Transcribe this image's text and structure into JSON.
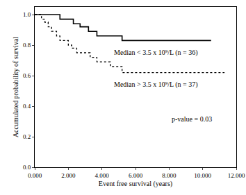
{
  "chart_data": {
    "type": "line",
    "x_label": "Event free survival (years)",
    "y_label": "Accumulated probability of survival",
    "annotations": [
      "p-value = 0.03"
    ],
    "xlim": [
      0,
      12
    ],
    "xticks": [
      {
        "value": 0,
        "label": "0.000"
      },
      {
        "value": 2,
        "label": "2.000"
      },
      {
        "value": 4,
        "label": "4.000"
      },
      {
        "value": 6,
        "label": "6.000"
      },
      {
        "value": 8,
        "label": "8.000"
      },
      {
        "value": 10,
        "label": "10.000"
      },
      {
        "value": 12,
        "label": "12.000"
      }
    ],
    "ylim": [
      0,
      1.05
    ],
    "yticks": [
      {
        "value": 0,
        "label": "0.0"
      },
      {
        "value": 0.2,
        "label": "0.2"
      },
      {
        "value": 0.4,
        "label": "0.4"
      },
      {
        "value": 0.6,
        "label": "0.6"
      },
      {
        "value": 0.8,
        "label": "0.8"
      },
      {
        "value": 1,
        "label": "1.0"
      }
    ],
    "grid": false,
    "series": [
      {
        "name": "Median < 3.5 x 10⁹/L (n = 36)",
        "color": "#000000",
        "line_style": "solid",
        "x": [
          0,
          1.5,
          2.3,
          2.7,
          3.2,
          3.7,
          5.2,
          10.5
        ],
        "values": [
          1.0,
          0.97,
          0.94,
          0.92,
          0.89,
          0.86,
          0.83,
          0.83
        ]
      },
      {
        "name": "Median > 3.5 x 10⁹/L (n = 37)",
        "color": "#000000",
        "line_style": "dot",
        "x": [
          0,
          0.4,
          0.6,
          0.8,
          1.0,
          1.3,
          1.5,
          2.0,
          2.2,
          2.5,
          3.3,
          3.7,
          4.5,
          5.2,
          11.3
        ],
        "values": [
          1.0,
          0.97,
          0.95,
          0.92,
          0.89,
          0.86,
          0.83,
          0.8,
          0.78,
          0.75,
          0.72,
          0.69,
          0.66,
          0.62,
          0.62
        ]
      }
    ]
  }
}
